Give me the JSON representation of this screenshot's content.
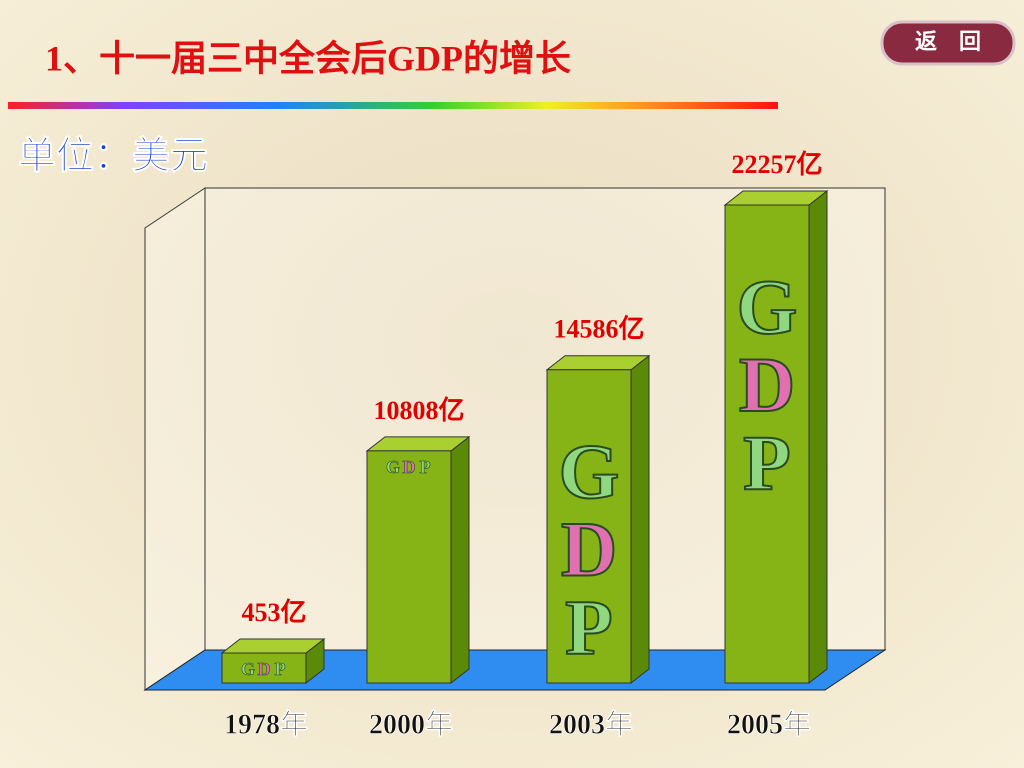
{
  "chart_data": {
    "type": "bar3d",
    "title": "1、十一届三中全会后GDP的增长",
    "unit_label": "单位：美元",
    "button": "返　回",
    "categories": [
      "1978年",
      "2000年",
      "2003年",
      "2005年"
    ],
    "values": [
      453,
      10808,
      14586,
      22257
    ],
    "value_labels": [
      "453亿",
      "10808亿",
      "14586亿",
      "22257亿"
    ],
    "bar_letters": [
      "G",
      "D",
      "P"
    ],
    "color": "#86b416"
  }
}
